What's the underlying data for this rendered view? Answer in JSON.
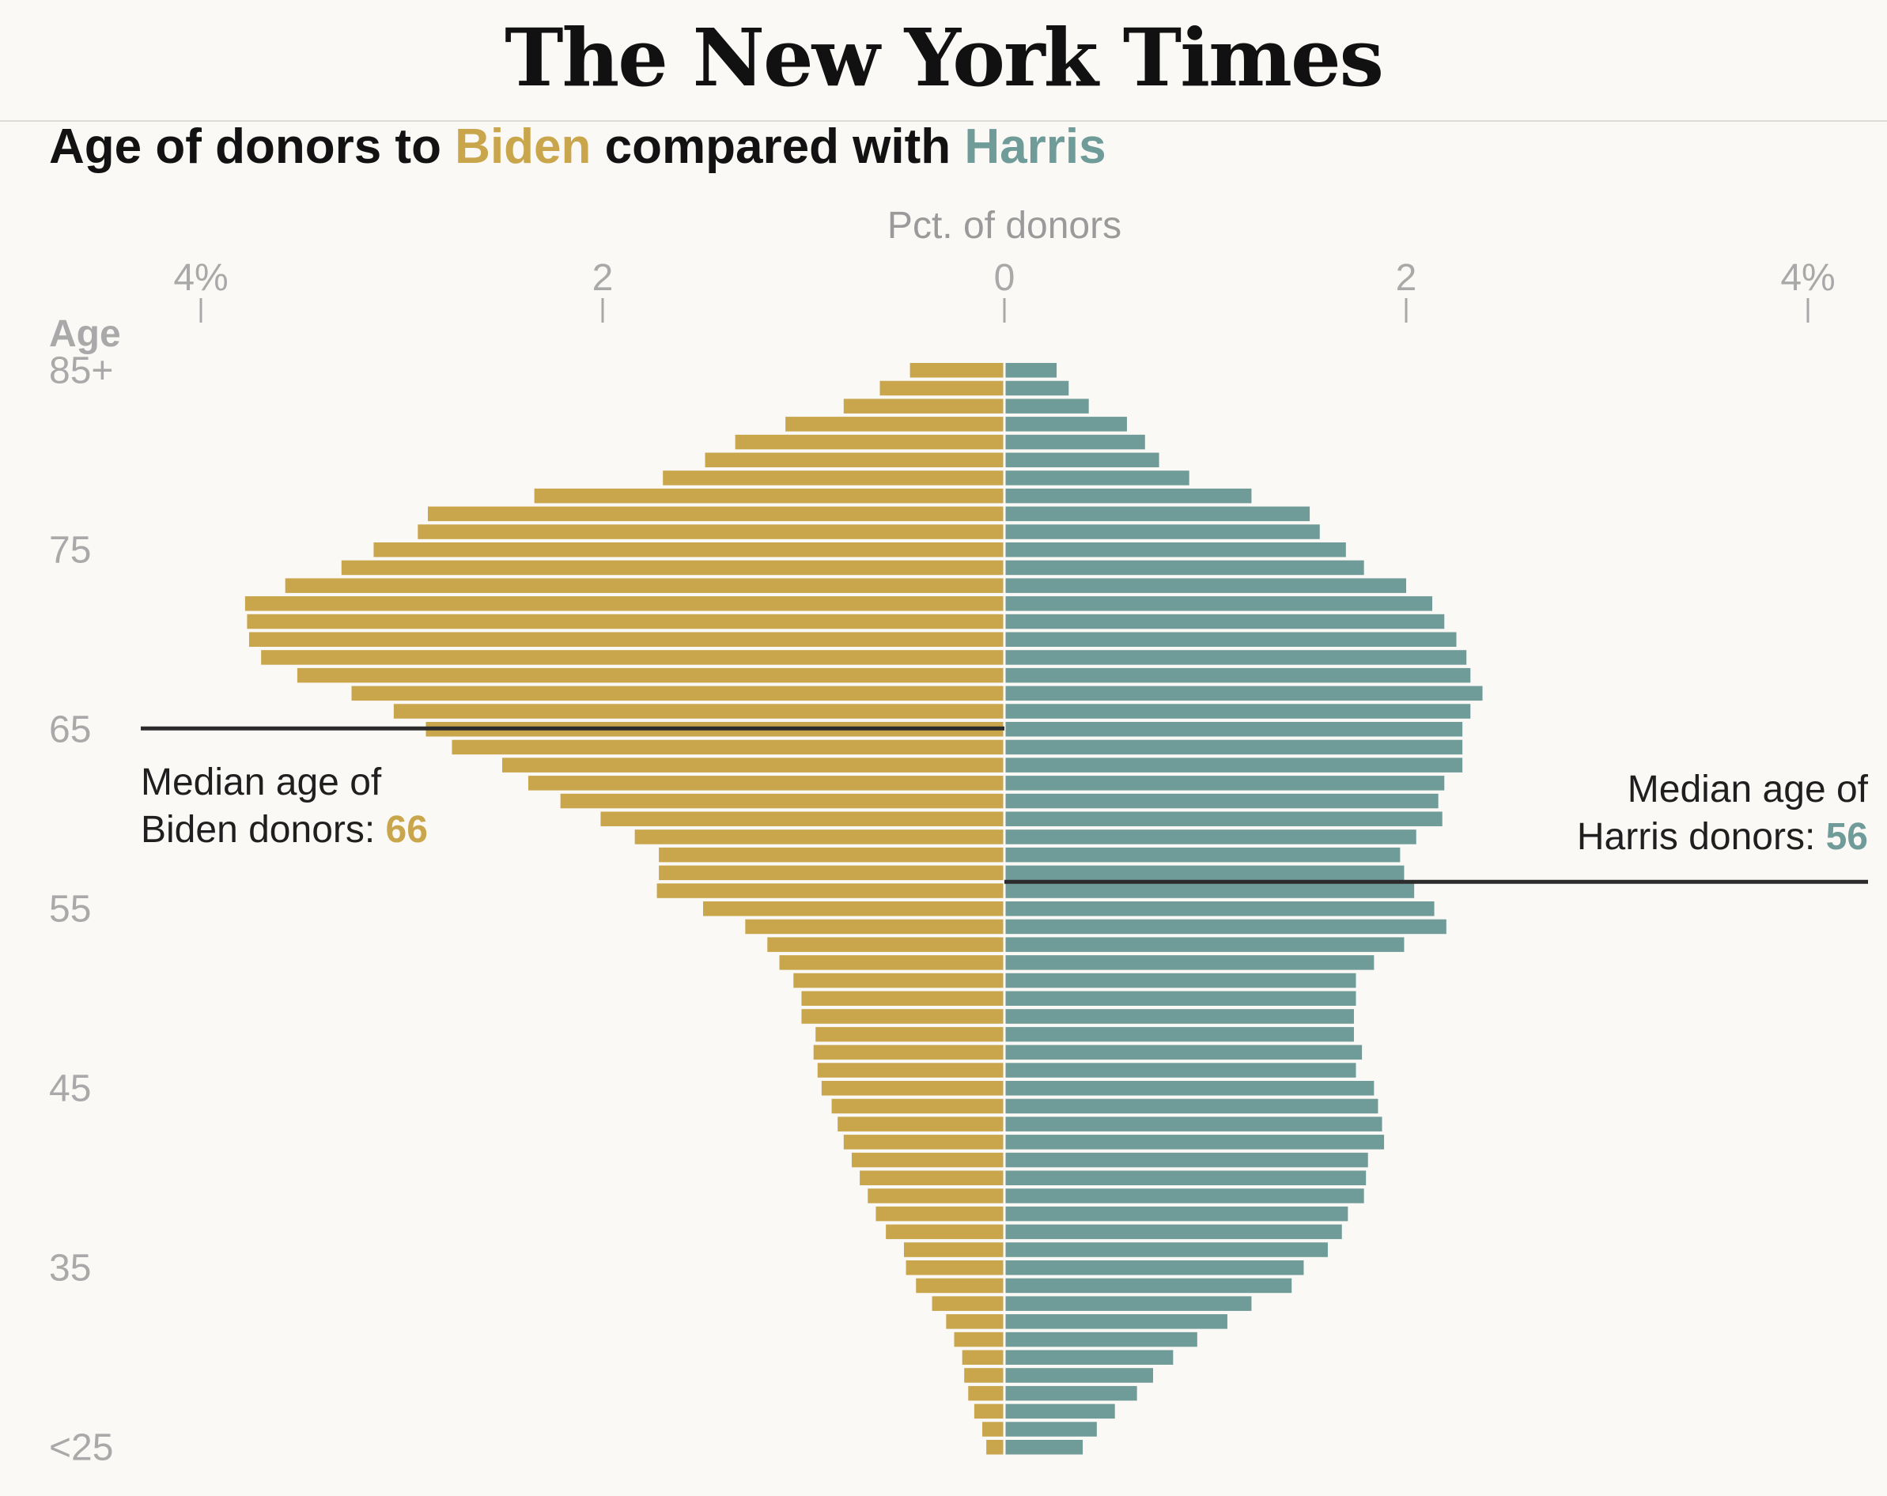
{
  "masthead": {
    "name": "The New York Times"
  },
  "title": {
    "prefix": "Age of donors to ",
    "biden": "Biden",
    "middle": " compared with ",
    "harris": "Harris"
  },
  "colors": {
    "biden": "#c9a54b",
    "harris": "#6f9b99",
    "median_line": "#2b2b2b",
    "background": "#fbf9f6"
  },
  "chart_data": {
    "type": "bar",
    "orientation": "horizontal-butterfly",
    "axis_title": "Pct. of donors",
    "ylabel": "Age",
    "x_ticks": [
      {
        "value": -4,
        "label": "4%"
      },
      {
        "value": -2,
        "label": "2"
      },
      {
        "value": 0,
        "label": "0"
      },
      {
        "value": 2,
        "label": "2"
      },
      {
        "value": 4,
        "label": "4%"
      }
    ],
    "xlim": [
      -4,
      4
    ],
    "age_ticks": [
      {
        "age": 85,
        "label": "85+"
      },
      {
        "age": 75,
        "label": "75"
      },
      {
        "age": 65,
        "label": "65"
      },
      {
        "age": 55,
        "label": "55"
      },
      {
        "age": 45,
        "label": "45"
      },
      {
        "age": 35,
        "label": "35"
      },
      {
        "age": 25,
        "label": "<25"
      }
    ],
    "ages": [
      85,
      84,
      83,
      82,
      81,
      80,
      79,
      78,
      77,
      76,
      75,
      74,
      73,
      72,
      71,
      70,
      69,
      68,
      67,
      66,
      65,
      64,
      63,
      62,
      61,
      60,
      59,
      58,
      57,
      56,
      55,
      54,
      53,
      52,
      51,
      50,
      49,
      48,
      47,
      46,
      45,
      44,
      43,
      42,
      41,
      40,
      39,
      38,
      37,
      36,
      35,
      34,
      33,
      32,
      31,
      30,
      29,
      28,
      27,
      26,
      25
    ],
    "series": [
      {
        "name": "Biden",
        "values": [
          0.47,
          0.62,
          0.8,
          1.09,
          1.34,
          1.49,
          1.7,
          2.34,
          2.87,
          2.92,
          3.14,
          3.3,
          3.58,
          3.78,
          3.77,
          3.76,
          3.7,
          3.52,
          3.25,
          3.04,
          2.88,
          2.75,
          2.5,
          2.37,
          2.21,
          2.01,
          1.84,
          1.72,
          1.72,
          1.73,
          1.5,
          1.29,
          1.18,
          1.12,
          1.05,
          1.01,
          1.01,
          0.94,
          0.95,
          0.93,
          0.91,
          0.86,
          0.83,
          0.8,
          0.76,
          0.72,
          0.68,
          0.64,
          0.59,
          0.5,
          0.49,
          0.44,
          0.36,
          0.29,
          0.25,
          0.21,
          0.2,
          0.18,
          0.15,
          0.11,
          0.09
        ]
      },
      {
        "name": "Harris",
        "values": [
          0.26,
          0.32,
          0.42,
          0.61,
          0.7,
          0.77,
          0.92,
          1.23,
          1.52,
          1.57,
          1.7,
          1.79,
          2.0,
          2.13,
          2.19,
          2.25,
          2.3,
          2.32,
          2.38,
          2.32,
          2.28,
          2.28,
          2.28,
          2.19,
          2.16,
          2.18,
          2.05,
          1.97,
          1.99,
          2.04,
          2.14,
          2.2,
          1.99,
          1.84,
          1.75,
          1.75,
          1.74,
          1.74,
          1.78,
          1.75,
          1.84,
          1.86,
          1.88,
          1.89,
          1.81,
          1.8,
          1.79,
          1.71,
          1.68,
          1.61,
          1.49,
          1.43,
          1.23,
          1.11,
          0.96,
          0.84,
          0.74,
          0.66,
          0.55,
          0.46,
          0.39
        ]
      }
    ],
    "medians": [
      {
        "series": "Biden",
        "age": 65,
        "text_line1": "Median age of",
        "text_line2": "Biden donors: ",
        "value": "66"
      },
      {
        "series": "Harris",
        "age": 55.5,
        "text_line1": "Median age of",
        "text_line2": "Harris donors: ",
        "value": "56"
      }
    ]
  }
}
